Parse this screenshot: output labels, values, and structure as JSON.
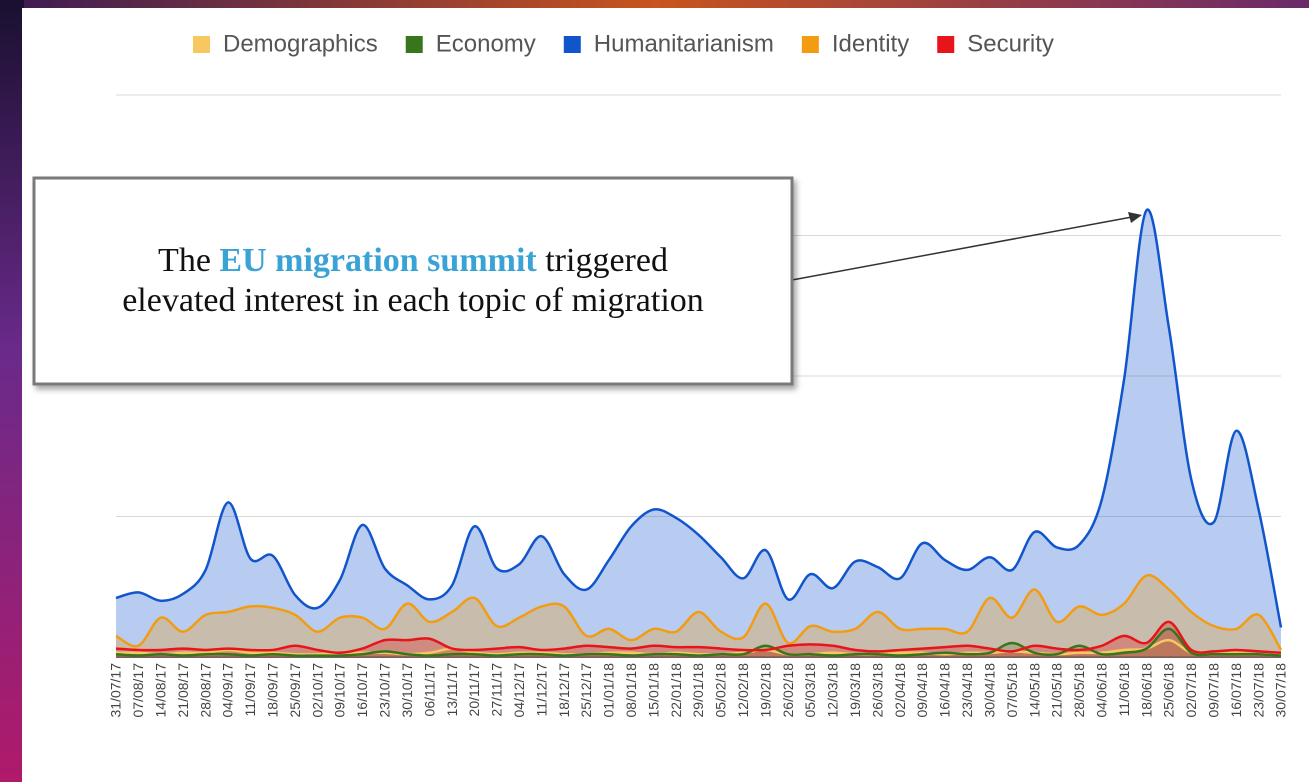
{
  "chart_data": {
    "type": "area",
    "annotation": {
      "before": "The",
      "highlight": "EU migration summit",
      "after": "triggered",
      "line2": "elevated interest in each topic of migration"
    },
    "categories": [
      "31/07/17",
      "07/08/17",
      "14/08/17",
      "21/08/17",
      "28/08/17",
      "04/09/17",
      "11/09/17",
      "18/09/17",
      "25/09/17",
      "02/10/17",
      "09/10/17",
      "16/10/17",
      "23/10/17",
      "30/10/17",
      "06/11/17",
      "13/11/17",
      "20/11/17",
      "27/11/17",
      "04/12/17",
      "11/12/17",
      "18/12/17",
      "25/12/17",
      "01/01/18",
      "08/01/18",
      "15/01/18",
      "22/01/18",
      "29/01/18",
      "05/02/18",
      "12/02/18",
      "19/02/18",
      "26/02/18",
      "05/03/18",
      "12/03/18",
      "19/03/18",
      "26/03/18",
      "02/04/18",
      "09/04/18",
      "16/04/18",
      "23/04/18",
      "30/04/18",
      "07/05/18",
      "14/05/18",
      "21/05/18",
      "28/05/18",
      "04/06/18",
      "11/06/18",
      "18/06/18",
      "25/06/18",
      "02/07/18",
      "09/07/18",
      "16/07/18",
      "23/07/18",
      "30/07/18"
    ],
    "series": [
      {
        "name": "Demographics",
        "color": "#f6c85f",
        "values": [
          0.03,
          0.03,
          0.02,
          0.03,
          0.03,
          0.05,
          0.03,
          0.03,
          0.02,
          0.02,
          0.03,
          0.03,
          0.03,
          0.02,
          0.03,
          0.06,
          0.03,
          0.02,
          0.03,
          0.03,
          0.02,
          0.02,
          0.03,
          0.03,
          0.02,
          0.03,
          0.02,
          0.02,
          0.03,
          0.05,
          0.02,
          0.02,
          0.03,
          0.02,
          0.02,
          0.03,
          0.03,
          0.02,
          0.03,
          0.03,
          0.04,
          0.03,
          0.02,
          0.03,
          0.03,
          0.05,
          0.06,
          0.12,
          0.03,
          0.02,
          0.03,
          0.02,
          0.02
        ]
      },
      {
        "name": "Economy",
        "color": "#38761d",
        "values": [
          0.02,
          0.01,
          0.02,
          0.01,
          0.02,
          0.02,
          0.01,
          0.02,
          0.01,
          0.01,
          0.01,
          0.02,
          0.04,
          0.02,
          0.01,
          0.02,
          0.02,
          0.01,
          0.02,
          0.02,
          0.01,
          0.02,
          0.02,
          0.01,
          0.02,
          0.02,
          0.01,
          0.02,
          0.02,
          0.08,
          0.02,
          0.02,
          0.01,
          0.02,
          0.02,
          0.01,
          0.02,
          0.03,
          0.02,
          0.03,
          0.1,
          0.03,
          0.02,
          0.08,
          0.02,
          0.03,
          0.06,
          0.2,
          0.03,
          0.02,
          0.02,
          0.02,
          0.01
        ]
      },
      {
        "name": "Humanitarianism",
        "color": "#1155cc",
        "values": [
          0.42,
          0.46,
          0.4,
          0.45,
          0.62,
          1.1,
          0.7,
          0.72,
          0.44,
          0.35,
          0.55,
          0.94,
          0.63,
          0.51,
          0.41,
          0.51,
          0.93,
          0.63,
          0.66,
          0.86,
          0.59,
          0.48,
          0.69,
          0.93,
          1.05,
          0.99,
          0.87,
          0.71,
          0.56,
          0.76,
          0.41,
          0.59,
          0.49,
          0.68,
          0.64,
          0.56,
          0.81,
          0.69,
          0.62,
          0.71,
          0.62,
          0.89,
          0.78,
          0.8,
          1.12,
          1.98,
          3.18,
          2.34,
          1.26,
          0.96,
          1.61,
          1.05,
          0.21
        ]
      },
      {
        "name": "Identity",
        "color": "#f39c12",
        "values": [
          0.15,
          0.08,
          0.28,
          0.18,
          0.3,
          0.32,
          0.36,
          0.35,
          0.3,
          0.18,
          0.28,
          0.28,
          0.2,
          0.38,
          0.25,
          0.32,
          0.42,
          0.22,
          0.28,
          0.36,
          0.36,
          0.15,
          0.2,
          0.12,
          0.2,
          0.18,
          0.32,
          0.18,
          0.14,
          0.38,
          0.1,
          0.22,
          0.18,
          0.2,
          0.32,
          0.2,
          0.2,
          0.2,
          0.18,
          0.42,
          0.28,
          0.48,
          0.25,
          0.36,
          0.3,
          0.38,
          0.58,
          0.48,
          0.32,
          0.22,
          0.2,
          0.3,
          0.05
        ]
      },
      {
        "name": "Security",
        "color": "#e8141b",
        "values": [
          0.06,
          0.05,
          0.05,
          0.06,
          0.05,
          0.06,
          0.05,
          0.05,
          0.08,
          0.05,
          0.03,
          0.06,
          0.12,
          0.12,
          0.13,
          0.06,
          0.05,
          0.06,
          0.07,
          0.05,
          0.06,
          0.08,
          0.07,
          0.06,
          0.08,
          0.07,
          0.07,
          0.06,
          0.05,
          0.05,
          0.08,
          0.09,
          0.08,
          0.05,
          0.04,
          0.05,
          0.06,
          0.07,
          0.08,
          0.06,
          0.04,
          0.08,
          0.06,
          0.05,
          0.08,
          0.15,
          0.1,
          0.25,
          0.05,
          0.04,
          0.05,
          0.04,
          0.03
        ]
      }
    ],
    "ylim": [
      0,
      4
    ],
    "yticks": [
      0,
      1,
      2,
      3,
      4
    ],
    "grid": true,
    "legend": "top"
  }
}
